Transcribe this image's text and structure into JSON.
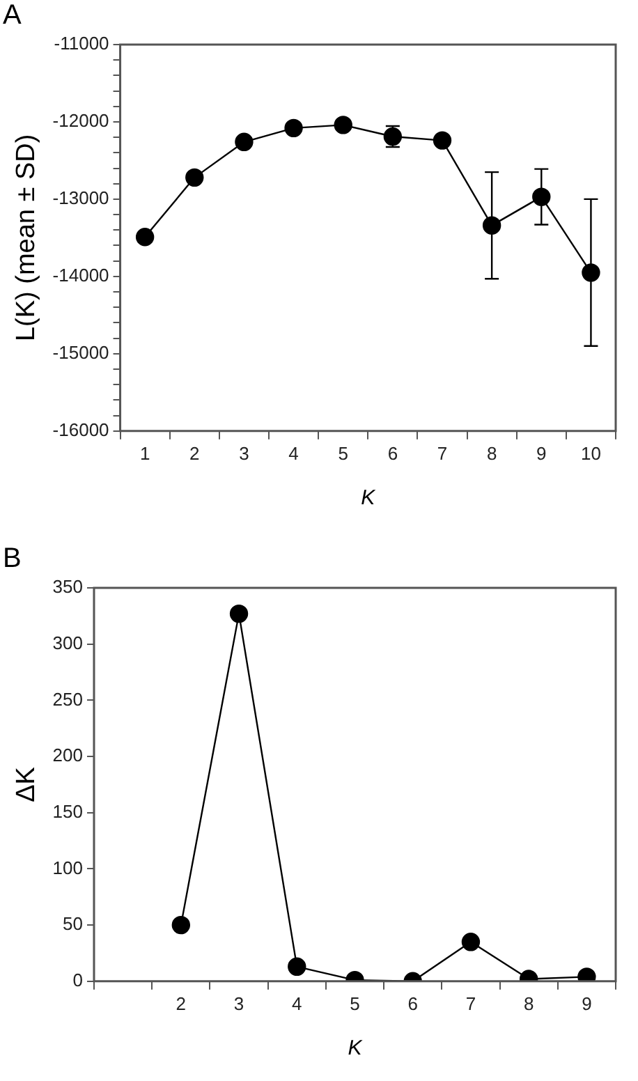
{
  "chart_data": [
    {
      "type": "line",
      "title": "A",
      "xlabel": "K",
      "ylabel": "L(K) (mean ± SD)",
      "marker": "circle",
      "legend": false,
      "categories": [
        "1",
        "2",
        "3",
        "4",
        "5",
        "6",
        "7",
        "8",
        "9",
        "10"
      ],
      "series": [
        {
          "color": "#000000",
          "values": [
            -13490,
            -12720,
            -12260,
            -12080,
            -12040,
            -12190,
            -12240,
            -13340,
            -12970,
            -13950
          ],
          "errors": [
            null,
            null,
            null,
            null,
            60,
            135,
            null,
            690,
            360,
            950
          ]
        }
      ],
      "ylim": [
        -16000,
        -11000
      ],
      "yticks": [
        -16000,
        {
          "value": -15800,
          "label": null
        },
        {
          "value": -15600,
          "label": null
        },
        {
          "value": -15400,
          "label": null
        },
        {
          "value": -15200,
          "label": null
        },
        -15000,
        {
          "value": -14800,
          "label": null
        },
        {
          "value": -14600,
          "label": null
        },
        {
          "value": -14400,
          "label": null
        },
        {
          "value": -14200,
          "label": null
        },
        -14000,
        {
          "value": -13800,
          "label": null
        },
        {
          "value": -13600,
          "label": null
        },
        {
          "value": -13400,
          "label": null
        },
        {
          "value": -13200,
          "label": null
        },
        -13000,
        {
          "value": -12800,
          "label": null
        },
        {
          "value": -12600,
          "label": null
        },
        {
          "value": -12400,
          "label": null
        },
        {
          "value": -12200,
          "label": null
        },
        -12000,
        {
          "value": -11800,
          "label": null
        },
        {
          "value": -11600,
          "label": null
        },
        {
          "value": -11400,
          "label": null
        },
        {
          "value": -11200,
          "label": null
        },
        -11000
      ]
    },
    {
      "type": "line",
      "title": "B",
      "xlabel": "K",
      "ylabel": "ΔK",
      "marker": "circle",
      "legend": false,
      "categories": [
        null,
        "2",
        "3",
        "4",
        "5",
        "6",
        "7",
        "8",
        "9"
      ],
      "series": [
        {
          "color": "#000000",
          "values": [
            null,
            50,
            327,
            13,
            1,
            0,
            35,
            2,
            4
          ]
        }
      ],
      "ylim": [
        0,
        350
      ],
      "yticks": [
        0,
        50,
        100,
        150,
        200,
        250,
        300,
        350
      ]
    }
  ]
}
